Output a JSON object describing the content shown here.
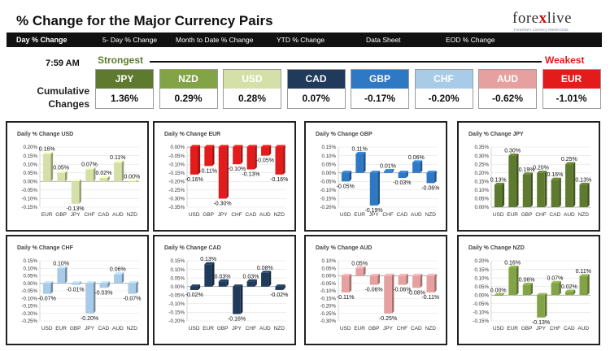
{
  "header": {
    "title": "% Change for the Major Currency Pairs",
    "brand_pre": "fore",
    "brand_x": "x",
    "brand_post": "live",
    "brand_tagline": "Forexlive's Currency Market Data"
  },
  "tabs": [
    "Day % Change",
    "5- Day % Change",
    "Month to Date % Change",
    "YTD % Change",
    "Data Sheet",
    "EOD % Change"
  ],
  "summary": {
    "time": "7:59 AM",
    "strongest_label": "Strongest",
    "weakest_label": "Weakest",
    "cumulative_label_1": "Cumulative",
    "cumulative_label_2": "Changes",
    "currencies": [
      {
        "code": "JPY",
        "value": "1.36%",
        "color": "#5e7a2e"
      },
      {
        "code": "NZD",
        "value": "0.29%",
        "color": "#82a446"
      },
      {
        "code": "USD",
        "value": "0.28%",
        "color": "#d5e0a8"
      },
      {
        "code": "CAD",
        "value": "0.07%",
        "color": "#1f3a5a"
      },
      {
        "code": "GBP",
        "value": "-0.17%",
        "color": "#2f78c4"
      },
      {
        "code": "CHF",
        "value": "-0.20%",
        "color": "#a8cbe8"
      },
      {
        "code": "AUD",
        "value": "-0.62%",
        "color": "#e6a0a0"
      },
      {
        "code": "EUR",
        "value": "-1.01%",
        "color": "#e31b1b"
      }
    ]
  },
  "chart_data": [
    {
      "type": "bar",
      "title": "Daily % Change USD",
      "categories": [
        "EUR",
        "GBP",
        "JPY",
        "CHF",
        "CAD",
        "AUD",
        "NZD"
      ],
      "values": [
        0.16,
        0.05,
        -0.13,
        0.07,
        0.02,
        0.11,
        0.0
      ],
      "labels": [
        "0.16%",
        "0.05%",
        "-0.13%",
        "0.07%",
        "0.02%",
        "0.11%",
        "0.00%"
      ],
      "ylim": [
        -0.15,
        0.2
      ],
      "ticks": [
        "0.20%",
        "0.15%",
        "0.10%",
        "0.05%",
        "0.00%",
        "-0.05%",
        "-0.10%",
        "-0.15%"
      ],
      "color": "#d5e0a8"
    },
    {
      "type": "bar",
      "title": "Daily % Change EUR",
      "categories": [
        "USD",
        "GBP",
        "JPY",
        "CHF",
        "CAD",
        "AUD",
        "NZD"
      ],
      "values": [
        -0.16,
        -0.11,
        -0.3,
        -0.1,
        -0.13,
        -0.05,
        -0.16
      ],
      "labels": [
        "-0.16%",
        "-0.11%",
        "-0.30%",
        "-0.10%",
        "-0.13%",
        "-0.05%",
        "-0.16%"
      ],
      "ylim": [
        -0.35,
        0.0
      ],
      "ticks": [
        "0.00%",
        "-0.05%",
        "-0.10%",
        "-0.15%",
        "-0.20%",
        "-0.25%",
        "-0.30%",
        "-0.35%"
      ],
      "color": "#e31b1b"
    },
    {
      "type": "bar",
      "title": "Daily % Change GBP",
      "categories": [
        "USD",
        "EUR",
        "JPY",
        "CHF",
        "CAD",
        "AUD",
        "NZD"
      ],
      "values": [
        -0.05,
        0.11,
        -0.19,
        0.01,
        -0.03,
        0.06,
        -0.06
      ],
      "labels": [
        "-0.05%",
        "0.11%",
        "-0.19%",
        "0.01%",
        "-0.03%",
        "0.06%",
        "-0.06%"
      ],
      "ylim": [
        -0.2,
        0.15
      ],
      "ticks": [
        "0.15%",
        "0.10%",
        "0.05%",
        "0.00%",
        "-0.05%",
        "-0.10%",
        "-0.15%",
        "-0.20%"
      ],
      "color": "#2f78c4"
    },
    {
      "type": "bar",
      "title": "Daily % Change JPY",
      "categories": [
        "USD",
        "EUR",
        "GBP",
        "CHF",
        "CAD",
        "AUD",
        "NZD"
      ],
      "values": [
        0.13,
        0.3,
        0.19,
        0.2,
        0.16,
        0.25,
        0.13
      ],
      "labels": [
        "0.13%",
        "0.30%",
        "0.19%",
        "0.20%",
        "0.16%",
        "0.25%",
        "0.13%"
      ],
      "ylim": [
        0.0,
        0.35
      ],
      "ticks": [
        "0.35%",
        "0.30%",
        "0.25%",
        "0.20%",
        "0.15%",
        "0.10%",
        "0.05%",
        "0.00%"
      ],
      "color": "#5e7a2e"
    },
    {
      "type": "bar",
      "title": "Daily % Change CHF",
      "categories": [
        "USD",
        "EUR",
        "GBP",
        "JPY",
        "CAD",
        "AUD",
        "NZD"
      ],
      "values": [
        -0.07,
        0.1,
        -0.01,
        -0.2,
        -0.03,
        0.06,
        -0.07
      ],
      "labels": [
        "-0.07%",
        "0.10%",
        "-0.01%",
        "-0.20%",
        "-0.03%",
        "0.06%",
        "-0.07%"
      ],
      "ylim": [
        -0.25,
        0.15
      ],
      "ticks": [
        "0.15%",
        "0.10%",
        "0.05%",
        "0.00%",
        "-0.05%",
        "-0.10%",
        "-0.15%",
        "-0.20%",
        "-0.25%"
      ],
      "color": "#a8cbe8"
    },
    {
      "type": "bar",
      "title": "Daily % Change CAD",
      "categories": [
        "USD",
        "EUR",
        "GBP",
        "JPY",
        "CHF",
        "AUD",
        "NZD"
      ],
      "values": [
        -0.02,
        0.13,
        0.03,
        -0.16,
        0.03,
        0.08,
        -0.02
      ],
      "labels": [
        "-0.02%",
        "0.13%",
        "0.03%",
        "-0.16%",
        "0.03%",
        "0.08%",
        "-0.02%"
      ],
      "ylim": [
        -0.2,
        0.15
      ],
      "ticks": [
        "0.15%",
        "0.10%",
        "0.05%",
        "0.00%",
        "-0.05%",
        "-0.10%",
        "-0.15%",
        "-0.20%"
      ],
      "color": "#1f3a5a"
    },
    {
      "type": "bar",
      "title": "Daily % Change AUD",
      "categories": [
        "USD",
        "EUR",
        "GBP",
        "JPY",
        "CHF",
        "CAD",
        "NZD"
      ],
      "values": [
        -0.11,
        0.05,
        -0.06,
        -0.25,
        -0.06,
        -0.08,
        -0.11
      ],
      "labels": [
        "-0.11%",
        "0.05%",
        "-0.06%",
        "-0.25%",
        "-0.06%",
        "-0.08%",
        "-0.11%"
      ],
      "ylim": [
        -0.3,
        0.1
      ],
      "ticks": [
        "0.10%",
        "0.05%",
        "0.00%",
        "-0.05%",
        "-0.10%",
        "-0.15%",
        "-0.20%",
        "-0.25%",
        "-0.30%"
      ],
      "color": "#e6a0a0"
    },
    {
      "type": "bar",
      "title": "Daily % Change NZD",
      "categories": [
        "USD",
        "EUR",
        "GBP",
        "JPY",
        "CHF",
        "CAD",
        "AUD"
      ],
      "values": [
        0.0,
        0.16,
        0.06,
        -0.13,
        0.07,
        0.02,
        0.11
      ],
      "labels": [
        "0.00%",
        "0.16%",
        "0.06%",
        "-0.13%",
        "0.07%",
        "0.02%",
        "0.11%"
      ],
      "ylim": [
        -0.15,
        0.2
      ],
      "ticks": [
        "0.20%",
        "0.15%",
        "0.10%",
        "0.05%",
        "0.00%",
        "-0.05%",
        "-0.10%",
        "-0.15%"
      ],
      "color": "#82a446"
    }
  ]
}
